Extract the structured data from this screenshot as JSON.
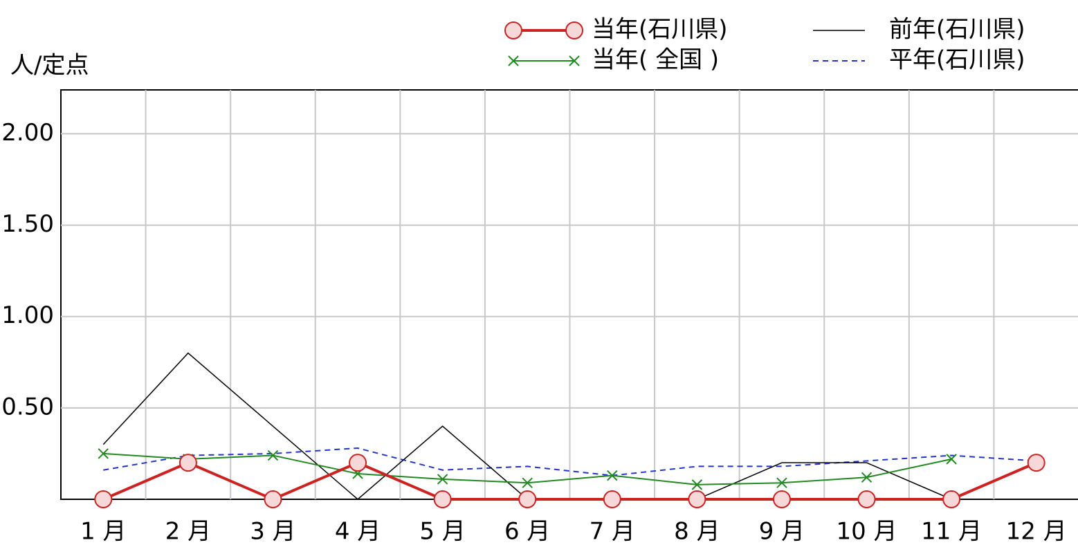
{
  "chart_data": {
    "type": "line",
    "y_label": "人/定点",
    "categories": [
      "1 月",
      "2 月",
      "3 月",
      "4 月",
      "5 月",
      "6 月",
      "7 月",
      "8 月",
      "9 月",
      "10 月",
      "11 月",
      "12 月"
    ],
    "ylim": [
      0,
      2.24
    ],
    "yticks": [
      {
        "value": 0.5,
        "label": "0.50"
      },
      {
        "value": 1,
        "label": "1.00"
      },
      {
        "value": 1.5,
        "label": "1.50"
      },
      {
        "value": 2,
        "label": "2.00"
      }
    ],
    "grid": true,
    "series": [
      {
        "name": "当年(石川県)",
        "color": "#cc2222",
        "marker": "circle",
        "width": 4,
        "dash": false,
        "values": [
          0,
          0.2,
          0,
          0.2,
          0,
          0,
          0,
          0,
          0,
          0,
          0,
          0.2
        ]
      },
      {
        "name": "当年( 全国 )",
        "color": "#228822",
        "marker": "x",
        "width": 2,
        "dash": false,
        "values": [
          0.25,
          0.22,
          0.24,
          0.14,
          0.11,
          0.09,
          0.13,
          0.08,
          0.09,
          0.12,
          0.22,
          null
        ]
      },
      {
        "name": "前年(石川県)",
        "color": "#000000",
        "marker": "none",
        "width": 1.5,
        "dash": false,
        "values": [
          0.3,
          0.8,
          0.4,
          0,
          0.4,
          0,
          0,
          0,
          0.2,
          0.2,
          0,
          null
        ]
      },
      {
        "name": "平年(石川県)",
        "color": "#2233cc",
        "marker": "none",
        "width": 2,
        "dash": true,
        "values": [
          0.16,
          0.24,
          0.25,
          0.28,
          0.16,
          0.18,
          0.13,
          0.18,
          0.18,
          0.21,
          0.24,
          0.21
        ]
      }
    ]
  }
}
